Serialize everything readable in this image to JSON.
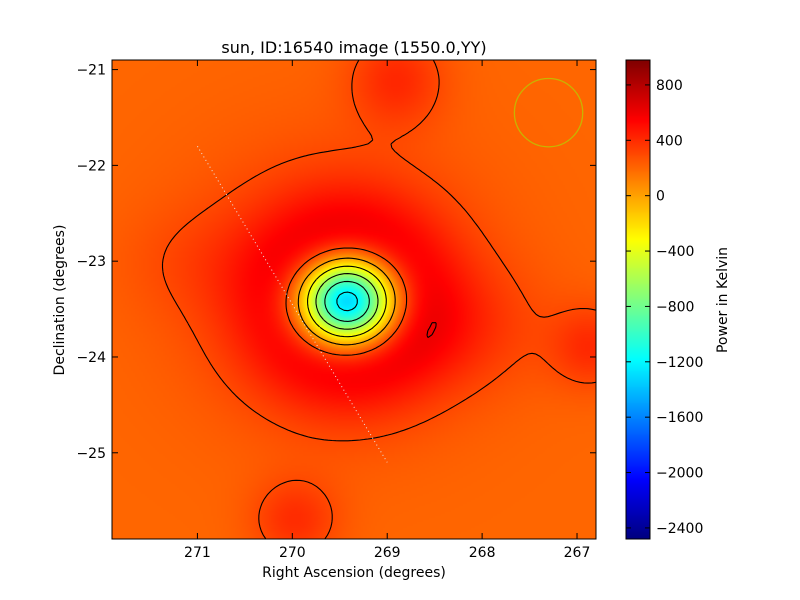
{
  "chart_data": {
    "type": "heatmap",
    "title": "sun, ID:16540 image (1550.0,YY)",
    "xlabel": "Right Ascension (degrees)",
    "ylabel": "Declination (degrees)",
    "xlim": [
      271.9,
      266.8
    ],
    "ylim": [
      -25.9,
      -20.9
    ],
    "x_ticks": [
      {
        "value": 271,
        "label": "271"
      },
      {
        "value": 270,
        "label": "270"
      },
      {
        "value": 269,
        "label": "269"
      },
      {
        "value": 268,
        "label": "268"
      },
      {
        "value": 267,
        "label": "267"
      }
    ],
    "y_ticks": [
      {
        "value": -21,
        "label": "−21"
      },
      {
        "value": -22,
        "label": "−22"
      },
      {
        "value": -23,
        "label": "−23"
      },
      {
        "value": -24,
        "label": "−24"
      },
      {
        "value": -25,
        "label": "−25"
      }
    ],
    "colorbar": {
      "label": "Power in Kelvin",
      "range": [
        -2480,
        980
      ],
      "colormap": "jet",
      "ticks": [
        {
          "value": 800,
          "label": "800"
        },
        {
          "value": 400,
          "label": "400"
        },
        {
          "value": 0,
          "label": "0"
        },
        {
          "value": -400,
          "label": "−400"
        },
        {
          "value": -800,
          "label": "−800"
        },
        {
          "value": -1200,
          "label": "−1200"
        },
        {
          "value": -1600,
          "label": "−1600"
        },
        {
          "value": -2000,
          "label": "−2000"
        },
        {
          "value": -2400,
          "label": "−2400"
        }
      ]
    },
    "background_level": 200,
    "sources": [
      {
        "ra": 269.42,
        "dec": -23.42,
        "sigma_ra": 0.38,
        "sigma_dec": 0.34,
        "peak": -2650
      },
      {
        "ra": 269.42,
        "dec": -23.42,
        "sigma_ra": 0.62,
        "sigma_dec": 0.6,
        "peak": 950
      },
      {
        "ra": 269.55,
        "dec": -23.25,
        "sigma_ra": 1.1,
        "sigma_dec": 1.0,
        "peak": 180
      },
      {
        "ra": 268.3,
        "dec": -23.7,
        "sigma_ra": 0.7,
        "sigma_dec": 0.45,
        "peak": 120
      },
      {
        "ra": 271.0,
        "dec": -23.0,
        "sigma_ra": 0.6,
        "sigma_dec": 0.4,
        "peak": 60
      },
      {
        "ra": 268.9,
        "dec": -21.1,
        "sigma_ra": 0.35,
        "sigma_dec": 0.35,
        "peak": 200
      },
      {
        "ra": 269.97,
        "dec": -25.7,
        "sigma_ra": 0.32,
        "sigma_dec": 0.3,
        "peak": 190
      },
      {
        "ra": 266.85,
        "dec": -23.9,
        "sigma_ra": 0.3,
        "sigma_dec": 0.3,
        "peak": 190
      }
    ],
    "contour_levels": [
      -2400,
      -2100,
      -1800,
      -1500,
      -1200,
      -900,
      -600,
      -300,
      0,
      300,
      600,
      900
    ],
    "beam_circle": {
      "ra": 267.3,
      "dec": -21.45,
      "radius": 0.36,
      "color": "#c8b400"
    },
    "sun_track": {
      "from": [
        271.0,
        -21.8
      ],
      "to": [
        269.0,
        -25.1
      ],
      "color": "#e8e8e8"
    }
  }
}
